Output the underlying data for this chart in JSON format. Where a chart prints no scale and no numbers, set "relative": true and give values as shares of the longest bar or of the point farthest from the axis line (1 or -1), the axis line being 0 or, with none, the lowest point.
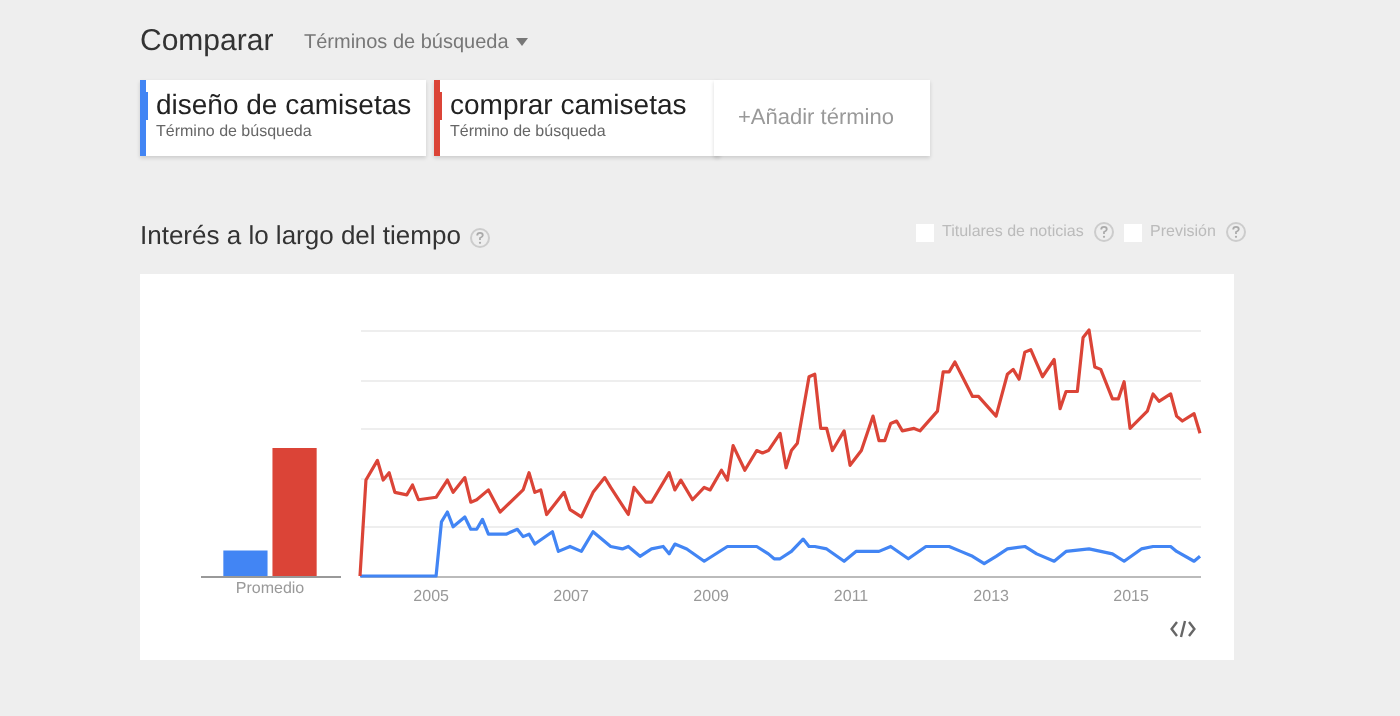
{
  "chart_data": [
    {
      "type": "bar",
      "relative": true,
      "categories": [
        "Promedio"
      ],
      "series": [
        {
          "color": "#4285f4",
          "values": [
            0.2
          ]
        },
        {
          "color": "#db4437",
          "values": [
            1
          ]
        }
      ]
    },
    {
      "type": "line",
      "relative": true,
      "title": "Interés a lo largo del tiempo",
      "grid": "y",
      "legend": "top",
      "line_style": "solid",
      "annotations": [
        "Comparar",
        "Términos de búsqueda",
        "Término de búsqueda",
        "Término de búsqueda",
        "+Añadir término",
        "Titulares de noticias",
        "Previsión"
      ],
      "xlim": [
        "2004-01",
        "2016-01"
      ],
      "xticks": [
        "2005",
        "2007",
        "2009",
        "2011",
        "2013",
        "2015"
      ],
      "series": [
        {
          "name": "diseño de camisetas",
          "color": "#4285f4",
          "x": [
            "2004-01",
            "2005-02",
            "2005-03",
            "2005-04",
            "2005-05",
            "2005-07",
            "2005-08",
            "2005-09",
            "2005-10",
            "2005-11",
            "2006-02",
            "2006-04",
            "2006-05",
            "2006-06",
            "2006-07",
            "2006-10",
            "2006-11",
            "2007-01",
            "2007-03",
            "2007-05",
            "2007-08",
            "2007-10",
            "2007-11",
            "2008-01",
            "2008-03",
            "2008-05",
            "2008-06",
            "2008-07",
            "2008-09",
            "2008-12",
            "2009-04",
            "2009-09",
            "2009-11",
            "2009-12",
            "2010-01",
            "2010-03",
            "2010-05",
            "2010-06",
            "2010-07",
            "2010-09",
            "2010-12",
            "2011-02",
            "2011-06",
            "2011-08",
            "2011-11",
            "2012-02",
            "2012-06",
            "2012-08",
            "2012-10",
            "2012-12",
            "2013-02",
            "2013-04",
            "2013-07",
            "2013-09",
            "2013-12",
            "2014-02",
            "2014-06",
            "2014-08",
            "2014-10",
            "2014-12",
            "2015-03",
            "2015-05",
            "2015-08",
            "2015-09",
            "2015-12",
            "2016-01"
          ],
          "values": [
            0,
            0,
            0.22,
            0.26,
            0.2,
            0.24,
            0.19,
            0.19,
            0.23,
            0.17,
            0.17,
            0.19,
            0.16,
            0.17,
            0.13,
            0.18,
            0.1,
            0.12,
            0.1,
            0.18,
            0.12,
            0.11,
            0.12,
            0.08,
            0.11,
            0.12,
            0.09,
            0.13,
            0.11,
            0.06,
            0.12,
            0.12,
            0.09,
            0.07,
            0.07,
            0.1,
            0.15,
            0.12,
            0.12,
            0.11,
            0.06,
            0.1,
            0.1,
            0.12,
            0.07,
            0.12,
            0.12,
            0.1,
            0.08,
            0.05,
            0.08,
            0.11,
            0.12,
            0.09,
            0.06,
            0.1,
            0.11,
            0.1,
            0.09,
            0.06,
            0.11,
            0.12,
            0.12,
            0.1,
            0.06,
            0.08
          ]
        },
        {
          "name": "comprar camisetas",
          "color": "#db4437",
          "x": [
            "2004-01",
            "2004-02",
            "2004-04",
            "2004-05",
            "2004-06",
            "2004-07",
            "2004-09",
            "2004-10",
            "2004-11",
            "2005-02",
            "2005-04",
            "2005-05",
            "2005-07",
            "2005-08",
            "2005-09",
            "2005-11",
            "2006-01",
            "2006-05",
            "2006-06",
            "2006-07",
            "2006-08",
            "2006-09",
            "2006-12",
            "2007-01",
            "2007-03",
            "2007-05",
            "2007-07",
            "2007-08",
            "2007-11",
            "2007-12",
            "2008-02",
            "2008-03",
            "2008-06",
            "2008-07",
            "2008-08",
            "2008-10",
            "2008-12",
            "2009-01",
            "2009-03",
            "2009-04",
            "2009-05",
            "2009-07",
            "2009-09",
            "2009-10",
            "2009-11",
            "2010-01",
            "2010-02",
            "2010-03",
            "2010-04",
            "2010-06",
            "2010-07",
            "2010-08",
            "2010-09",
            "2010-10",
            "2010-12",
            "2011-01",
            "2011-03",
            "2011-05",
            "2011-06",
            "2011-07",
            "2011-08",
            "2011-09",
            "2011-10",
            "2011-12",
            "2012-01",
            "2012-04",
            "2012-05",
            "2012-06",
            "2012-07",
            "2012-10",
            "2012-11",
            "2013-02",
            "2013-04",
            "2013-05",
            "2013-06",
            "2013-07",
            "2013-08",
            "2013-10",
            "2013-12",
            "2014-01",
            "2014-02",
            "2014-04",
            "2014-05",
            "2014-06",
            "2014-07",
            "2014-08",
            "2014-10",
            "2014-11",
            "2014-12",
            "2015-01",
            "2015-04",
            "2015-05",
            "2015-06",
            "2015-08",
            "2015-09",
            "2015-10",
            "2015-12",
            "2016-01"
          ],
          "values": [
            0,
            0.39,
            0.47,
            0.39,
            0.42,
            0.34,
            0.33,
            0.37,
            0.31,
            0.32,
            0.39,
            0.34,
            0.4,
            0.3,
            0.31,
            0.35,
            0.26,
            0.35,
            0.42,
            0.34,
            0.35,
            0.25,
            0.34,
            0.27,
            0.24,
            0.34,
            0.4,
            0.36,
            0.25,
            0.36,
            0.3,
            0.3,
            0.42,
            0.35,
            0.39,
            0.31,
            0.36,
            0.35,
            0.43,
            0.39,
            0.53,
            0.43,
            0.51,
            0.5,
            0.51,
            0.58,
            0.44,
            0.51,
            0.54,
            0.81,
            0.82,
            0.6,
            0.6,
            0.51,
            0.59,
            0.45,
            0.51,
            0.65,
            0.55,
            0.55,
            0.62,
            0.63,
            0.59,
            0.6,
            0.59,
            0.67,
            0.83,
            0.83,
            0.87,
            0.73,
            0.73,
            0.65,
            0.82,
            0.84,
            0.8,
            0.91,
            0.92,
            0.81,
            0.88,
            0.68,
            0.75,
            0.75,
            0.97,
            1,
            0.85,
            0.84,
            0.72,
            0.72,
            0.79,
            0.6,
            0.67,
            0.74,
            0.71,
            0.74,
            0.65,
            0.63,
            0.66,
            0.58
          ]
        }
      ]
    }
  ]
}
